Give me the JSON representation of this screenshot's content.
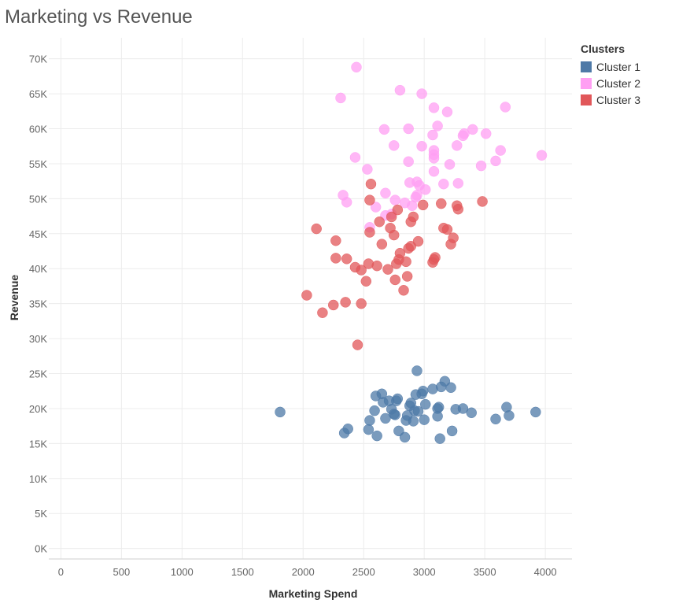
{
  "chart_data": {
    "type": "scatter",
    "title": "Marketing vs Revenue",
    "xlabel": "Marketing Spend",
    "ylabel": "Revenue",
    "xlim": [
      -100,
      4220
    ],
    "ylim": [
      -1500,
      73000
    ],
    "x_ticks": [
      0,
      500,
      1000,
      1500,
      2000,
      2500,
      3000,
      3500,
      4000
    ],
    "x_tick_labels": [
      "0",
      "500",
      "1000",
      "1500",
      "2000",
      "2500",
      "3000",
      "3500",
      "4000"
    ],
    "y_ticks": [
      0,
      5000,
      10000,
      15000,
      20000,
      25000,
      30000,
      35000,
      40000,
      45000,
      50000,
      55000,
      60000,
      65000,
      70000
    ],
    "y_tick_labels": [
      "0K",
      "5K",
      "10K",
      "15K",
      "20K",
      "25K",
      "30K",
      "35K",
      "40K",
      "45K",
      "50K",
      "55K",
      "60K",
      "65K",
      "70K"
    ],
    "grid": true,
    "legend_position": "top-right",
    "legend_title": "Clusters",
    "series": [
      {
        "name": "Cluster 1",
        "color": "#4e79a7",
        "points": [
          [
            1810,
            19500
          ],
          [
            2340,
            16500
          ],
          [
            2370,
            17100
          ],
          [
            2540,
            17000
          ],
          [
            2550,
            18300
          ],
          [
            2590,
            19700
          ],
          [
            2600,
            21800
          ],
          [
            2610,
            16100
          ],
          [
            2650,
            22100
          ],
          [
            2660,
            20900
          ],
          [
            2680,
            18600
          ],
          [
            2710,
            21100
          ],
          [
            2730,
            19900
          ],
          [
            2750,
            19200
          ],
          [
            2760,
            19100
          ],
          [
            2770,
            21100
          ],
          [
            2780,
            21400
          ],
          [
            2790,
            16800
          ],
          [
            2840,
            15900
          ],
          [
            2850,
            18300
          ],
          [
            2860,
            19000
          ],
          [
            2880,
            20400
          ],
          [
            2890,
            20800
          ],
          [
            2910,
            18200
          ],
          [
            2920,
            19700
          ],
          [
            2930,
            22000
          ],
          [
            2940,
            25400
          ],
          [
            2950,
            19600
          ],
          [
            2980,
            22100
          ],
          [
            2990,
            22500
          ],
          [
            3000,
            18400
          ],
          [
            3010,
            20600
          ],
          [
            3070,
            22800
          ],
          [
            3110,
            20000
          ],
          [
            3110,
            18900
          ],
          [
            3120,
            20200
          ],
          [
            3130,
            15700
          ],
          [
            3140,
            23100
          ],
          [
            3170,
            23900
          ],
          [
            3220,
            23000
          ],
          [
            3230,
            16800
          ],
          [
            3260,
            19900
          ],
          [
            3320,
            20000
          ],
          [
            3390,
            19400
          ],
          [
            3590,
            18500
          ],
          [
            3680,
            20200
          ],
          [
            3700,
            19000
          ],
          [
            3920,
            19500
          ]
        ]
      },
      {
        "name": "Cluster 2",
        "color": "#ff9ff3",
        "points": [
          [
            2440,
            68800
          ],
          [
            2310,
            64400
          ],
          [
            2800,
            65500
          ],
          [
            2980,
            65000
          ],
          [
            3080,
            63000
          ],
          [
            3190,
            62400
          ],
          [
            3670,
            63100
          ],
          [
            2670,
            59900
          ],
          [
            2870,
            60000
          ],
          [
            3110,
            60400
          ],
          [
            3330,
            59300
          ],
          [
            3400,
            59900
          ],
          [
            3510,
            59300
          ],
          [
            3320,
            59000
          ],
          [
            3070,
            59100
          ],
          [
            2750,
            57600
          ],
          [
            2980,
            57500
          ],
          [
            3080,
            56900
          ],
          [
            3270,
            57600
          ],
          [
            3080,
            56300
          ],
          [
            3080,
            55800
          ],
          [
            3630,
            56900
          ],
          [
            3970,
            56200
          ],
          [
            2430,
            55900
          ],
          [
            2870,
            55300
          ],
          [
            3210,
            54900
          ],
          [
            3470,
            54700
          ],
          [
            3590,
            55400
          ],
          [
            2530,
            54200
          ],
          [
            3080,
            53900
          ],
          [
            2880,
            52300
          ],
          [
            2940,
            52400
          ],
          [
            2960,
            51900
          ],
          [
            3010,
            51300
          ],
          [
            3160,
            52100
          ],
          [
            3280,
            52200
          ],
          [
            2330,
            50500
          ],
          [
            2360,
            49500
          ],
          [
            2680,
            50800
          ],
          [
            2760,
            49800
          ],
          [
            2840,
            49400
          ],
          [
            2930,
            50200
          ],
          [
            2600,
            48800
          ],
          [
            2550,
            45900
          ],
          [
            2680,
            47600
          ],
          [
            2730,
            47800
          ],
          [
            2900,
            49000
          ],
          [
            2940,
            50500
          ]
        ]
      },
      {
        "name": "Cluster 3",
        "color": "#e15759",
        "points": [
          [
            2030,
            36200
          ],
          [
            2110,
            45700
          ],
          [
            2160,
            33700
          ],
          [
            2250,
            34800
          ],
          [
            2270,
            44000
          ],
          [
            2270,
            41500
          ],
          [
            2350,
            35200
          ],
          [
            2360,
            41400
          ],
          [
            2430,
            40200
          ],
          [
            2450,
            29100
          ],
          [
            2480,
            39800
          ],
          [
            2480,
            35000
          ],
          [
            2520,
            38200
          ],
          [
            2540,
            40700
          ],
          [
            2550,
            45200
          ],
          [
            2550,
            49800
          ],
          [
            2560,
            52100
          ],
          [
            2610,
            40400
          ],
          [
            2630,
            46700
          ],
          [
            2650,
            43500
          ],
          [
            2700,
            39900
          ],
          [
            2720,
            45800
          ],
          [
            2730,
            47400
          ],
          [
            2750,
            44800
          ],
          [
            2760,
            38400
          ],
          [
            2770,
            40700
          ],
          [
            2780,
            48400
          ],
          [
            2790,
            41300
          ],
          [
            2800,
            42200
          ],
          [
            2830,
            36900
          ],
          [
            2850,
            41000
          ],
          [
            2860,
            38900
          ],
          [
            2870,
            42900
          ],
          [
            2890,
            43200
          ],
          [
            2890,
            46700
          ],
          [
            2910,
            47400
          ],
          [
            2950,
            43900
          ],
          [
            2990,
            49100
          ],
          [
            3070,
            40900
          ],
          [
            3080,
            41300
          ],
          [
            3090,
            41600
          ],
          [
            3140,
            49300
          ],
          [
            3160,
            45800
          ],
          [
            3190,
            45600
          ],
          [
            3220,
            43500
          ],
          [
            3240,
            44400
          ],
          [
            3270,
            49000
          ],
          [
            3280,
            48500
          ],
          [
            3480,
            49600
          ]
        ]
      }
    ]
  }
}
